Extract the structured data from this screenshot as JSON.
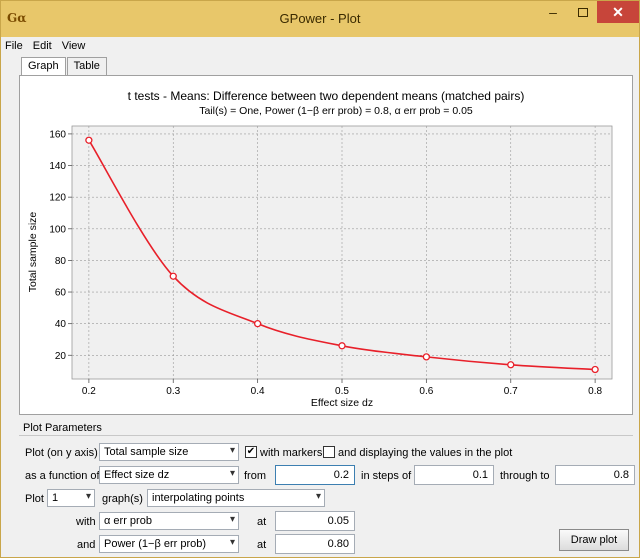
{
  "window": {
    "title": "GPower - Plot",
    "app_icon": "Gα",
    "minimize_glyph": "–",
    "close_glyph": "✕"
  },
  "menu": [
    "File",
    "Edit",
    "View"
  ],
  "tabs": [
    "Graph",
    "Table"
  ],
  "chart_data": {
    "type": "line",
    "title": "t tests - Means: Difference between two dependent means (matched pairs)",
    "subtitle": "Tail(s) = One, Power (1−β err prob) = 0.8, α err prob = 0.05",
    "xlabel": "Effect size dz",
    "ylabel": "Total sample size",
    "x": [
      0.2,
      0.3,
      0.4,
      0.5,
      0.6,
      0.7,
      0.8
    ],
    "series": [
      {
        "values": [
          156,
          70,
          40,
          26,
          19,
          14,
          11
        ]
      }
    ],
    "xlim": [
      0.18,
      0.82
    ],
    "ylim": [
      5,
      165
    ],
    "xticks": [
      "0.2",
      "0.3",
      "0.4",
      "0.5",
      "0.6",
      "0.7",
      "0.8"
    ],
    "yticks": [
      "20",
      "40",
      "60",
      "80",
      "100",
      "120",
      "140",
      "160"
    ],
    "grid": true,
    "markers": true,
    "line_color": "#e8202a"
  },
  "params": {
    "header": "Plot Parameters",
    "y_axis_label": "Plot (on y axis)",
    "y_axis_value": "Total sample size",
    "with_markers_label": "with markers",
    "with_markers_checked": "✔",
    "display_values_label": "and displaying the values in the plot",
    "function_label": "as a function of",
    "function_value": "Effect size dz",
    "from_label": "from",
    "from_value": "0.2",
    "steps_label": "in steps of",
    "steps_value": "0.1",
    "through_label": "through to",
    "through_value": "0.8",
    "plot_label": "Plot",
    "plot_count": "1",
    "graphs_label": "graph(s)",
    "graphs_value": "interpolating points",
    "with_label": "with",
    "with_value": "α err prob",
    "with_at_label": "at",
    "with_at_value": "0.05",
    "and_label": "and",
    "and_value": "Power (1−β err prob)",
    "and_at_label": "at",
    "and_at_value": "0.80",
    "draw_button": "Draw plot"
  }
}
